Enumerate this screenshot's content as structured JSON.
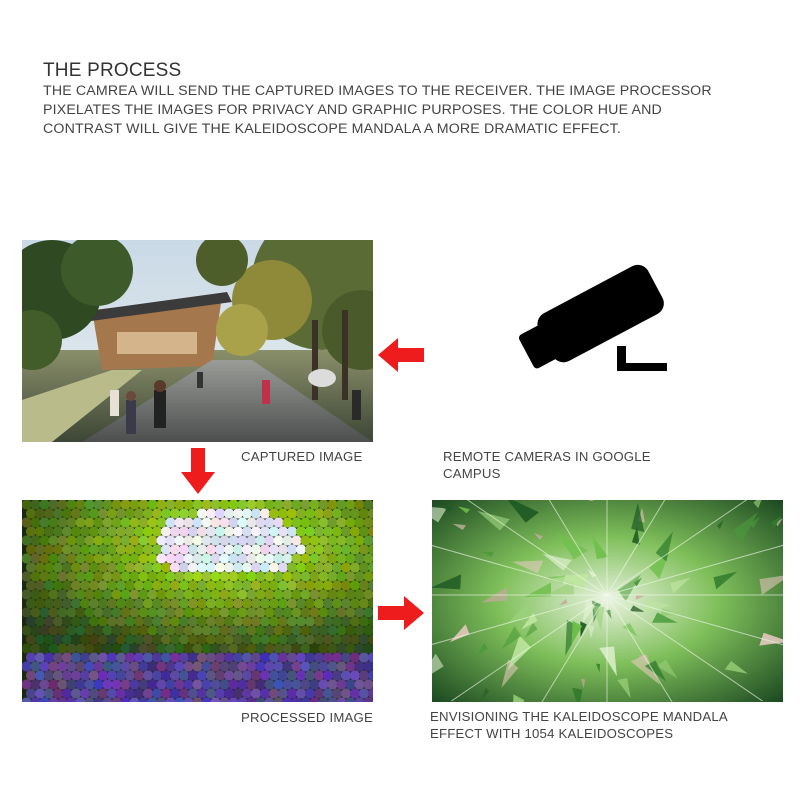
{
  "title": "THE PROCESS",
  "description": "THE CAMREA WILL SEND THE CAPTURED IMAGES TO THE RECEIVER. THE IMAGE PROCESSOR PIXELATES THE IMAGES FOR PRIVACY AND GRAPHIC PURPOSES. THE COLOR HUE AND CONTRAST WILL GIVE THE KALEIDOSCOPE MANDALA A MORE DRAMATIC EFFECT.",
  "captions": {
    "captured": "CAPTURED IMAGE",
    "camera_line1": "REMOTE CAMERAS IN GOOGLE",
    "camera_line2": "CAMPUS",
    "processed": "PROCESSED IMAGE",
    "kaleido_line1": "ENVISIONING THE KALEIDOSCOPE MANDALA",
    "kaleido_line2": "EFFECT WITH 1054 KALEIDOSCOPES"
  },
  "icons": {
    "camera": "security-camera-icon",
    "arrow_left": "arrow-left-icon",
    "arrow_down": "arrow-down-icon",
    "arrow_right": "arrow-right-icon"
  },
  "colors": {
    "arrow": "#ee1c1c",
    "text": "#444444",
    "camera": "#000000"
  }
}
